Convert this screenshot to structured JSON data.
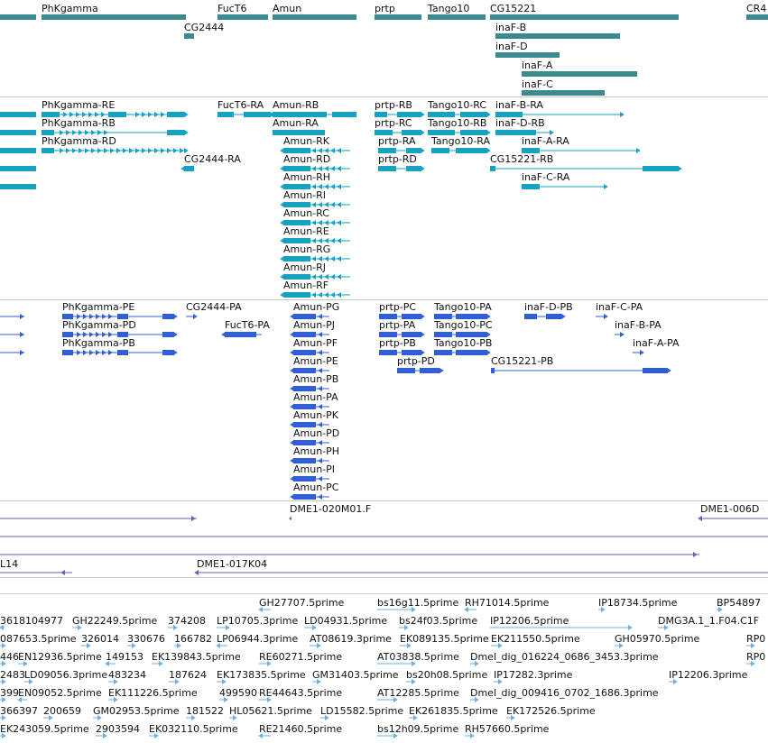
{
  "colors": {
    "gene": "#3b8b8e",
    "mrna": "#17a2c2",
    "protein": "#2f5fd0",
    "clone": "#7a56b5",
    "est": "#6ab1e3"
  },
  "tracks": {
    "gene": {
      "labels": [
        "PhKgamma",
        "FucT6",
        "Amun",
        "prtp",
        "Tango10",
        "CG15221",
        "CR4",
        "CG2444",
        "inaF-B",
        "inaF-D",
        "inaF-A",
        "inaF-C"
      ]
    },
    "mrna": {
      "labels": [
        "PhKgamma-RE",
        "FucT6-RA",
        "Amun-RB",
        "prtp-RB",
        "Tango10-RC",
        "inaF-B-RA",
        "PhKgamma-RB",
        "Amun-RA",
        "prtp-RC",
        "Tango10-RB",
        "inaF-D-RB",
        "PhKgamma-RD",
        "Amun-RK",
        "prtp-RA",
        "Tango10-RA",
        "inaF-A-RA",
        "CG2444-RA",
        "Amun-RD",
        "prtp-RD",
        "CG15221-RB",
        "Amun-RH",
        "inaF-C-RA",
        "Amun-RI",
        "Amun-RC",
        "Amun-RE",
        "Amun-RG",
        "Amun-RJ",
        "Amun-RF"
      ]
    },
    "protein": {
      "labels": [
        "PhKgamma-PE",
        "CG2444-PA",
        "Amun-PG",
        "prtp-PC",
        "Tango10-PA",
        "inaF-D-PB",
        "inaF-C-PA",
        "PhKgamma-PD",
        "FucT6-PA",
        "Amun-PJ",
        "prtp-PA",
        "Tango10-PC",
        "inaF-B-PA",
        "PhKgamma-PB",
        "Amun-PF",
        "prtp-PB",
        "Tango10-PB",
        "inaF-A-PA",
        "Amun-PE",
        "prtp-PD",
        "CG15221-PB",
        "Amun-PB",
        "Amun-PA",
        "Amun-PK",
        "Amun-PD",
        "Amun-PH",
        "Amun-PI",
        "Amun-PC"
      ]
    },
    "clone": {
      "labels": [
        "DME1-020M01.F",
        "DME1-006D",
        "L14",
        "DME1-017K04"
      ]
    },
    "est": {
      "labels": [
        "GH27707.5prime",
        "bs16g11.5prime",
        "RH71014.5prime",
        "IP18734.5prime",
        "BP54897",
        "3618104977",
        "GH22249.5prime",
        "374208",
        "LP10705.3prime",
        "LD04931.5prime",
        "bs24f03.5prime",
        "IP12206.5prime",
        "DMG3A.1_1.F04.C1F",
        "087653.5prime",
        "326014",
        "330676",
        "166782",
        "LP06944.3prime",
        "AT08619.3prime",
        "EK089135.5prime",
        "EK211550.5prime",
        "GH05970.5prime",
        "RP0",
        "446",
        "EN12936.5prime",
        "149153",
        "EK139843.5prime",
        "RE60271.5prime",
        "AT03838.5prime",
        "Dmel_dig_016224_0686_3453.3prime",
        "RP0",
        "2483",
        "LD09056.3prime",
        "483234",
        "187624",
        "EK173835.5prime",
        "GM31403.5prime",
        "bs20h08.5prime",
        "IP17282.3prime",
        "IP12206.3prime",
        "399",
        "EN09052.5prime",
        "EK111226.5prime",
        "499590",
        "RE44643.5prime",
        "AT12285.5prime",
        "Dmel_dig_009416_0702_1686.3prime",
        "366397",
        "200659",
        "GM02953.5prime",
        "181522",
        "HL05621.5prime",
        "LD15582.5prime",
        "EK261835.5prime",
        "EK172526.5prime",
        "EK243059.5prime",
        "2903594",
        "EK032110.5prime",
        "RE21460.5prime",
        "bs12h09.5prime",
        "RH57660.5prime"
      ]
    }
  }
}
